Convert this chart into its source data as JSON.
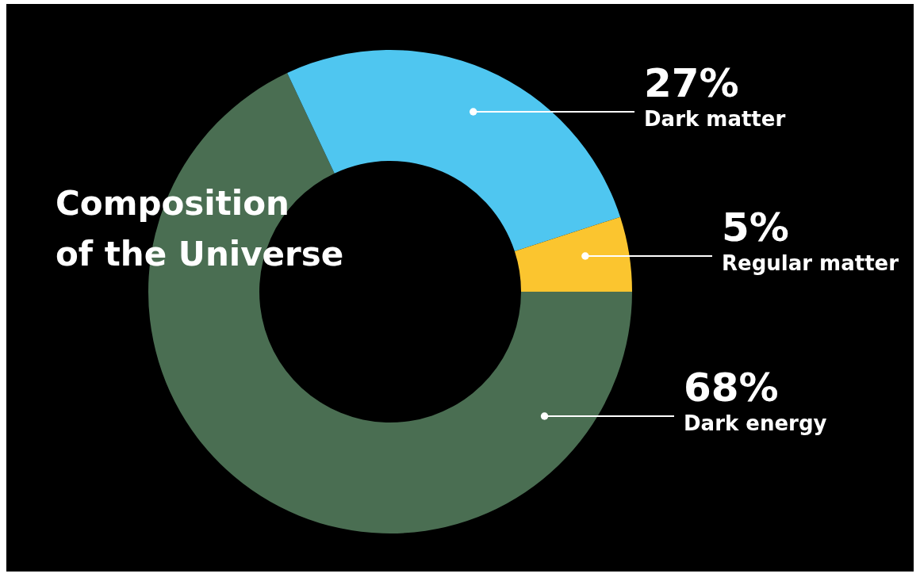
{
  "chart_data": {
    "type": "donut",
    "title": "Composition of the Universe",
    "categories": [
      "Dark energy",
      "Dark matter",
      "Regular matter"
    ],
    "values": [
      68,
      27,
      5
    ],
    "value_labels": [
      "68%",
      "27%",
      "5%"
    ],
    "colors": [
      "#4a6e52",
      "#4fc6f0",
      "#fbc52f"
    ]
  }
}
